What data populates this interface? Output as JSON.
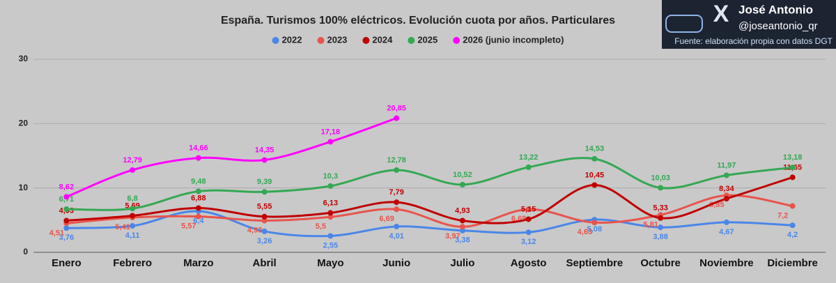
{
  "chart_data": {
    "type": "line",
    "title": "España. Turismos 100% eléctricos. Evolución cuota por años. Particulares",
    "categories": [
      "Enero",
      "Febrero",
      "Marzo",
      "Abril",
      "Mayo",
      "Junio",
      "Julio",
      "Agosto",
      "Septiembre",
      "Octubre",
      "Noviembre",
      "Diciembre"
    ],
    "ylim": [
      0,
      30
    ],
    "yticks": [
      0,
      10,
      20,
      30
    ],
    "grid": true,
    "legend": "top",
    "smooth": true,
    "series": [
      {
        "name": "2022",
        "color": "#4a86e8",
        "values": [
          3.76,
          4.11,
          6.4,
          3.26,
          2.55,
          4.01,
          3.38,
          3.12,
          5.08,
          3.88,
          4.67,
          4.2
        ],
        "value_labels": [
          "3,76",
          "4,11",
          "6,4",
          "3,26",
          "2,55",
          "4,01",
          "3,38",
          "3,12",
          "5,08",
          "3,88",
          "4,67",
          "4,2"
        ]
      },
      {
        "name": "2023",
        "color": "#e8544c",
        "values": [
          4.51,
          5.41,
          5.57,
          4.93,
          5.5,
          6.69,
          3.97,
          6.69,
          4.63,
          5.81,
          8.85,
          7.2
        ],
        "value_labels": [
          "4,51",
          "5,41",
          "5,57",
          "4,93",
          "5,5",
          "6,69",
          "3,97",
          "6,69",
          "4,63",
          "5,81",
          "8,85",
          "7,2"
        ]
      },
      {
        "name": "2024",
        "color": "#c00000",
        "values": [
          4.93,
          5.69,
          6.88,
          5.55,
          6.13,
          7.79,
          4.93,
          5.15,
          10.45,
          5.33,
          8.34,
          11.65
        ],
        "value_labels": [
          "4,93",
          "5,69",
          "6,88",
          "5,55",
          "6,13",
          "7,79",
          "4,93",
          "5,15",
          "10,45",
          "5,33",
          "8,34",
          "11,65"
        ]
      },
      {
        "name": "2025",
        "color": "#34a853",
        "values": [
          6.71,
          6.8,
          9.48,
          9.39,
          10.3,
          12.78,
          10.52,
          13.22,
          14.53,
          10.03,
          11.97,
          13.18
        ],
        "value_labels": [
          "6,71",
          "6,8",
          "9,48",
          "9,39",
          "10,3",
          "12,78",
          "10,52",
          "13,22",
          "14,53",
          "10,03",
          "11,97",
          "13,18"
        ]
      },
      {
        "name": "2026 (junio incompleto)",
        "color": "#ff00ff",
        "values": [
          8.62,
          12.79,
          14.66,
          14.35,
          17.18,
          20.85,
          null,
          null,
          null,
          null,
          null,
          null
        ],
        "value_labels": [
          "8,62",
          "12,79",
          "14,66",
          "14,35",
          "17,18",
          "20,85",
          null,
          null,
          null,
          null,
          null,
          null
        ]
      }
    ]
  },
  "branding": {
    "name": "José Antonio",
    "handle": "@joseantonio_qr",
    "source": "Fuente: elaboración propia con datos DGT"
  }
}
